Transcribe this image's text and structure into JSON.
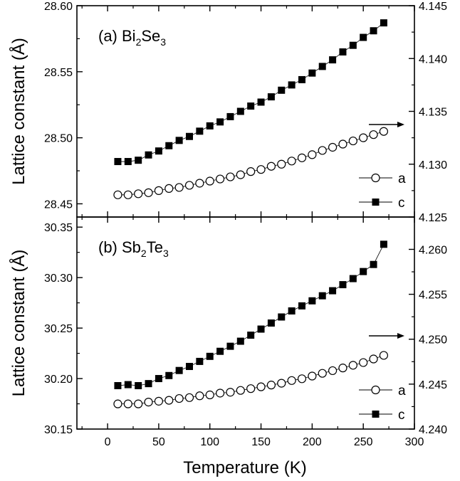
{
  "figure": {
    "xlabel": "Temperature (K)",
    "x_ticks": [
      "0",
      "50",
      "100",
      "150",
      "200",
      "250",
      "300"
    ],
    "xlim": [
      -30,
      300
    ]
  },
  "chart_data": [
    {
      "type": "scatter",
      "panel_label": "(a) Bi",
      "panel_sub1": "2",
      "panel_mid": "Se",
      "panel_sub2": "3",
      "ylabel": "Lattice constant (Å)",
      "y_left_lim": [
        28.44,
        28.6
      ],
      "y_left_ticks": [
        "28.45",
        "28.50",
        "28.55",
        "28.60"
      ],
      "y_right_lim": [
        4.125,
        4.145
      ],
      "y_right_ticks": [
        "4.125",
        "4.130",
        "4.135",
        "4.140",
        "4.145"
      ],
      "legend_position": "lower-right",
      "x": [
        10,
        20,
        30,
        40,
        50,
        60,
        70,
        80,
        90,
        100,
        110,
        120,
        130,
        140,
        150,
        160,
        170,
        180,
        190,
        200,
        210,
        220,
        230,
        240,
        250,
        260,
        270
      ],
      "series": [
        {
          "name": "a",
          "marker": "open-circle",
          "axis": "right",
          "values": [
            4.1271,
            4.1271,
            4.1272,
            4.1273,
            4.1275,
            4.1277,
            4.1278,
            4.128,
            4.1282,
            4.1284,
            4.1286,
            4.1288,
            4.129,
            4.1293,
            4.1295,
            4.1298,
            4.13,
            4.1303,
            4.1306,
            4.1309,
            4.1313,
            4.1316,
            4.1319,
            4.1322,
            4.1325,
            4.1328,
            4.1331
          ]
        },
        {
          "name": "c",
          "marker": "filled-square",
          "axis": "left",
          "values": [
            28.482,
            28.482,
            28.483,
            28.487,
            28.49,
            28.494,
            28.498,
            28.501,
            28.505,
            28.509,
            28.512,
            28.516,
            28.52,
            28.524,
            28.527,
            28.531,
            28.536,
            28.54,
            28.544,
            28.549,
            28.554,
            28.559,
            28.565,
            28.57,
            28.576,
            28.581,
            28.587
          ]
        }
      ],
      "annotation": "arrow pointing right: open circles use right axis"
    },
    {
      "type": "scatter",
      "panel_label": "(b) Sb",
      "panel_sub1": "2",
      "panel_mid": "Te",
      "panel_sub2": "3",
      "ylabel": "Lattice constant (Å)",
      "y_left_lim": [
        30.15,
        30.36
      ],
      "y_left_ticks": [
        "30.15",
        "30.20",
        "30.25",
        "30.30",
        "30.35"
      ],
      "y_right_lim": [
        4.24,
        4.2636
      ],
      "y_right_ticks": [
        "4.240",
        "4.245",
        "4.250",
        "4.255",
        "4.260"
      ],
      "legend_position": "lower-right",
      "x": [
        10,
        20,
        30,
        40,
        50,
        60,
        70,
        80,
        90,
        100,
        110,
        120,
        130,
        140,
        150,
        160,
        170,
        180,
        190,
        200,
        210,
        220,
        230,
        240,
        250,
        260,
        270
      ],
      "series": [
        {
          "name": "a",
          "marker": "open-circle",
          "axis": "right",
          "values": [
            4.2428,
            4.2428,
            4.2428,
            4.243,
            4.2431,
            4.2432,
            4.2434,
            4.2435,
            4.2437,
            4.2438,
            4.244,
            4.2441,
            4.2443,
            4.2445,
            4.2447,
            4.2449,
            4.2451,
            4.2454,
            4.2456,
            4.2459,
            4.2462,
            4.2465,
            4.2468,
            4.2471,
            4.2474,
            4.2478,
            4.2482
          ]
        },
        {
          "name": "c",
          "marker": "filled-square",
          "axis": "left",
          "values": [
            30.193,
            30.194,
            30.193,
            30.195,
            30.2,
            30.203,
            30.208,
            30.212,
            30.217,
            30.222,
            30.227,
            30.232,
            30.237,
            30.243,
            30.249,
            30.255,
            30.261,
            30.267,
            30.272,
            30.277,
            30.282,
            30.287,
            30.293,
            30.299,
            30.306,
            30.313,
            30.333
          ]
        }
      ],
      "annotation": "arrow pointing right: open circles use right axis"
    }
  ]
}
